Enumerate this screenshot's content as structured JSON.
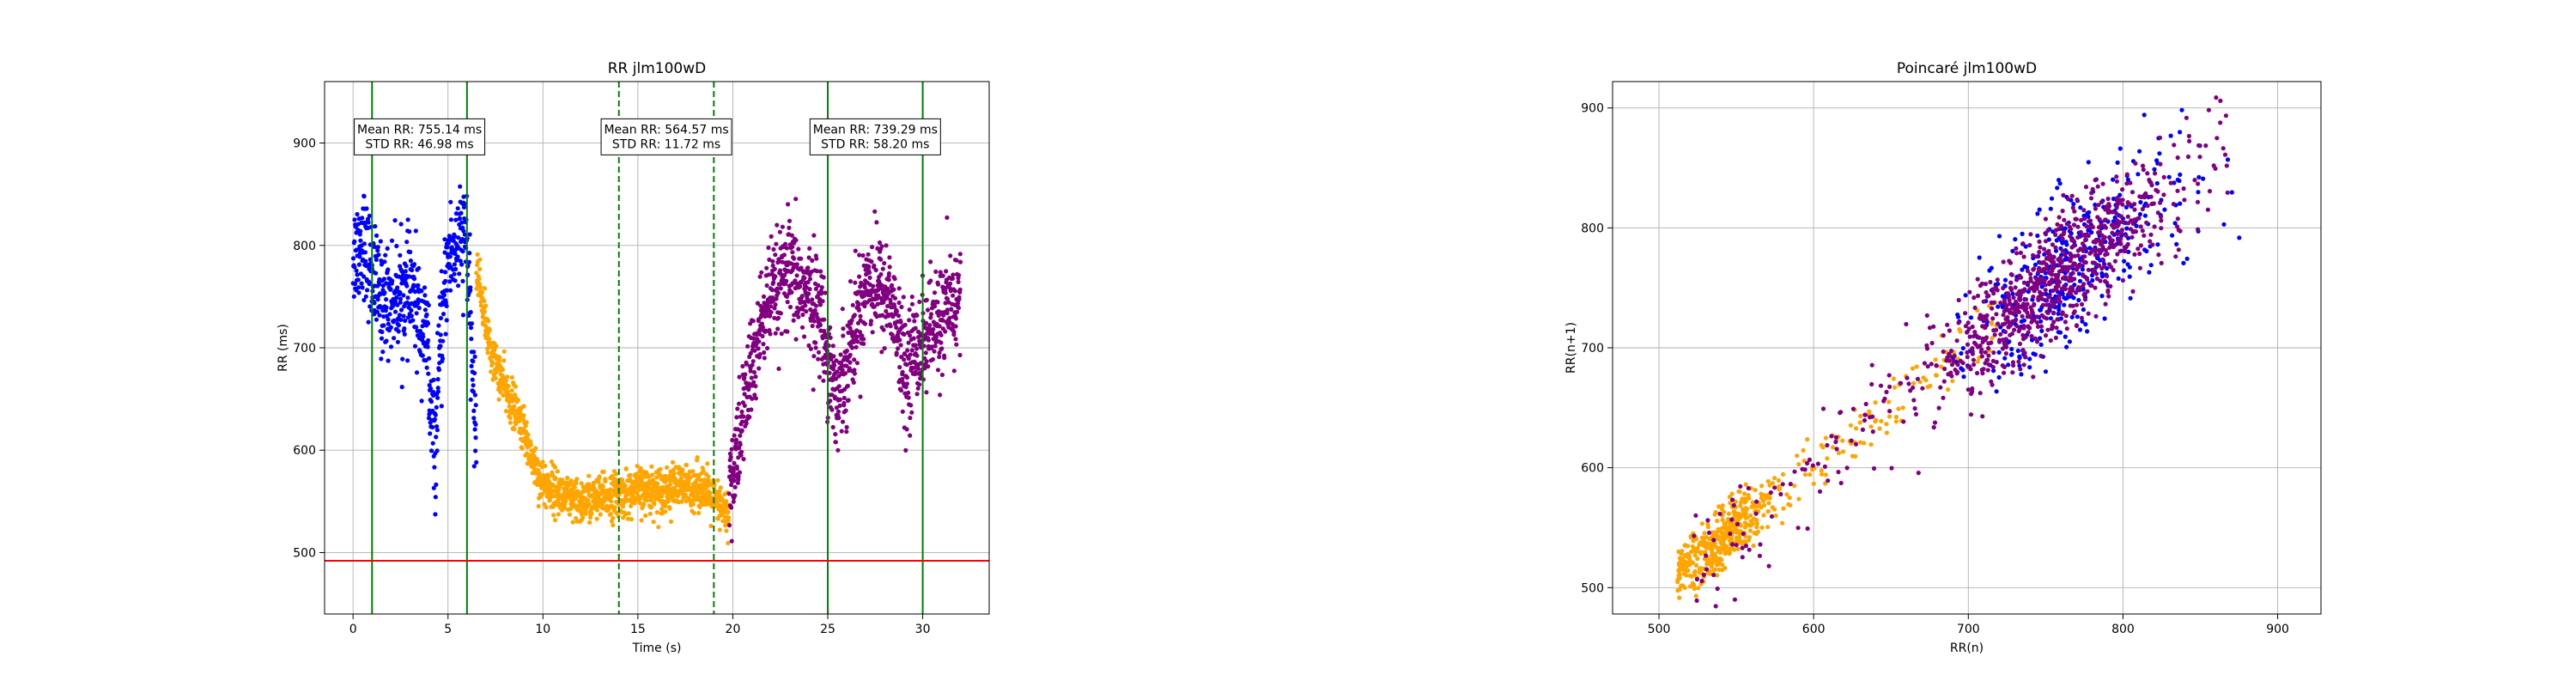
{
  "colors": {
    "blue": "#0000ff",
    "orange": "#ffa500",
    "purple": "#800080",
    "green": "#008000",
    "red": "#ff0000",
    "grid": "#b0b0b0"
  },
  "chart_data": [
    {
      "type": "scatter",
      "title": "RR jlm100wD",
      "xlabel": "Time (s)",
      "ylabel": "RR (ms)",
      "xlim": [
        -1.5,
        33.5
      ],
      "ylim": [
        440,
        960
      ],
      "x_ticks": [
        0,
        5,
        10,
        15,
        20,
        25,
        30
      ],
      "y_ticks": [
        500,
        600,
        700,
        800,
        900
      ],
      "grid": true,
      "series": [
        {
          "color": "blue",
          "segments": [
            {
              "x": [
                0,
                0.6
              ],
              "y": [
                790,
                810
              ]
            },
            {
              "x": [
                0.6,
                1.5
              ],
              "y": [
                795,
                745
              ]
            },
            {
              "x": [
                1.5,
                3.0
              ],
              "y": [
                745,
                755
              ]
            },
            {
              "x": [
                3.0,
                4.0
              ],
              "y": [
                760,
                700
              ]
            },
            {
              "x": [
                4.0,
                4.4
              ],
              "y": [
                650,
                590
              ]
            },
            {
              "x": [
                4.4,
                5.0
              ],
              "y": [
                650,
                790
              ]
            },
            {
              "x": [
                5.0,
                6.0
              ],
              "y": [
                790,
                810
              ]
            },
            {
              "x": [
                6.0,
                6.5
              ],
              "y": [
                790,
                600
              ]
            }
          ]
        },
        {
          "color": "orange",
          "segments": [
            {
              "x": [
                6.5,
                7.2
              ],
              "y": [
                780,
                700
              ]
            },
            {
              "x": [
                7.2,
                8.0
              ],
              "y": [
                700,
                660
              ]
            },
            {
              "x": [
                8.0,
                9.0
              ],
              "y": [
                660,
                620
              ]
            },
            {
              "x": [
                9.0,
                9.8
              ],
              "y": [
                615,
                575
              ]
            },
            {
              "x": [
                9.8,
                12.0
              ],
              "y": [
                570,
                545
              ]
            },
            {
              "x": [
                12.0,
                15.0
              ],
              "y": [
                550,
                560
              ]
            },
            {
              "x": [
                15.0,
                18.5
              ],
              "y": [
                560,
                565
              ]
            },
            {
              "x": [
                18.5,
                19.8
              ],
              "y": [
                560,
                535
              ]
            }
          ]
        },
        {
          "color": "purple",
          "segments": [
            {
              "x": [
                19.8,
                20.5
              ],
              "y": [
                560,
                620
              ]
            },
            {
              "x": [
                20.5,
                21.5
              ],
              "y": [
                640,
                720
              ]
            },
            {
              "x": [
                21.5,
                23.0
              ],
              "y": [
                730,
                775
              ]
            },
            {
              "x": [
                23.0,
                24.5
              ],
              "y": [
                770,
                740
              ]
            },
            {
              "x": [
                24.5,
                25.6
              ],
              "y": [
                740,
                640
              ]
            },
            {
              "x": [
                25.6,
                27.0
              ],
              "y": [
                660,
                760
              ]
            },
            {
              "x": [
                27.0,
                28.5
              ],
              "y": [
                770,
                745
              ]
            },
            {
              "x": [
                28.5,
                29.2
              ],
              "y": [
                730,
                660
              ]
            },
            {
              "x": [
                29.2,
                32.0
              ],
              "y": [
                690,
                750
              ]
            }
          ]
        }
      ],
      "vlines": [
        {
          "x": 1.0,
          "color": "green",
          "style": "solid"
        },
        {
          "x": 6.0,
          "color": "green",
          "style": "solid"
        },
        {
          "x": 14.0,
          "color": "green",
          "style": "dashed"
        },
        {
          "x": 19.0,
          "color": "green",
          "style": "dashed"
        },
        {
          "x": 25.0,
          "color": "green",
          "style": "solid"
        },
        {
          "x": 30.0,
          "color": "green",
          "style": "solid"
        }
      ],
      "hline": {
        "y": 492,
        "color": "red"
      },
      "annotations": [
        {
          "x": 3.5,
          "y": 906,
          "lines": [
            "Mean RR: 755.14 ms",
            "STD RR: 46.98 ms"
          ]
        },
        {
          "x": 16.5,
          "y": 906,
          "lines": [
            "Mean RR: 564.57 ms",
            "STD RR: 11.72 ms"
          ]
        },
        {
          "x": 27.5,
          "y": 906,
          "lines": [
            "Mean RR: 739.29 ms",
            "STD RR: 58.20 ms"
          ]
        }
      ]
    },
    {
      "type": "scatter",
      "title": "Poincaré jlm100wD",
      "xlabel": "RR(n)",
      "ylabel": "RR(n+1)",
      "xlim": [
        470,
        928
      ],
      "ylim": [
        478,
        922
      ],
      "x_ticks": [
        500,
        600,
        700,
        800,
        900
      ],
      "y_ticks": [
        500,
        600,
        700,
        800,
        900
      ],
      "grid": true,
      "series": [
        {
          "color": "orange",
          "range": [
            512,
            720
          ],
          "spread": 12
        },
        {
          "color": "blue",
          "range": [
            690,
            880
          ],
          "spread": 30
        },
        {
          "color": "purple",
          "range": [
            520,
            870
          ],
          "spread": 24
        }
      ]
    }
  ]
}
